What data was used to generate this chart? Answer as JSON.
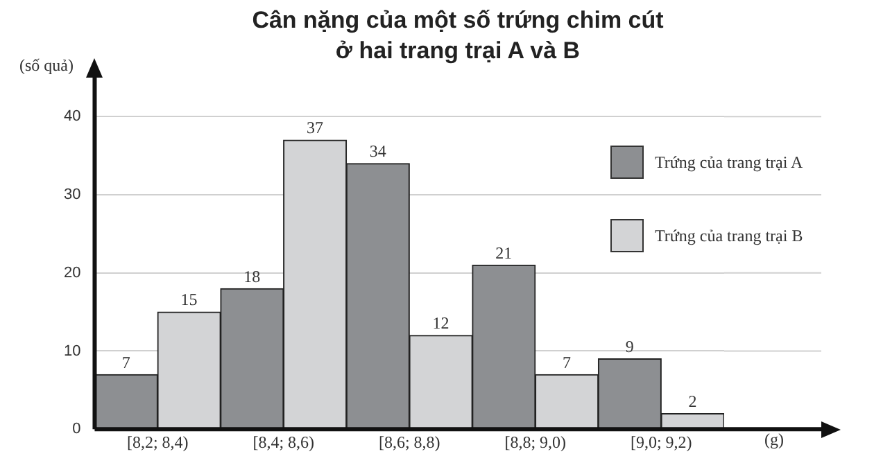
{
  "chart_data": {
    "type": "bar",
    "title": "Cân nặng của một số trứng chim cút ở hai trang trại A và B",
    "xlabel": "(g)",
    "ylabel": "(số quả)",
    "categories": [
      "[8,2; 8,4)",
      "[8,4; 8,6)",
      "[8,6; 8,8)",
      "[8,8; 9,0)",
      "[9,0; 9,2)"
    ],
    "series": [
      {
        "name": "Trứng của trang trại A",
        "color": "#8d8f92",
        "values": [
          7,
          18,
          34,
          21,
          9
        ]
      },
      {
        "name": "Trứng của trang trại B",
        "color": "#d3d4d6",
        "values": [
          15,
          37,
          12,
          7,
          2
        ]
      }
    ],
    "ylim": [
      0,
      45
    ],
    "yticks": [
      0,
      10,
      20,
      30,
      40
    ],
    "grid": "y",
    "legend": "top right",
    "data_labels": true
  }
}
